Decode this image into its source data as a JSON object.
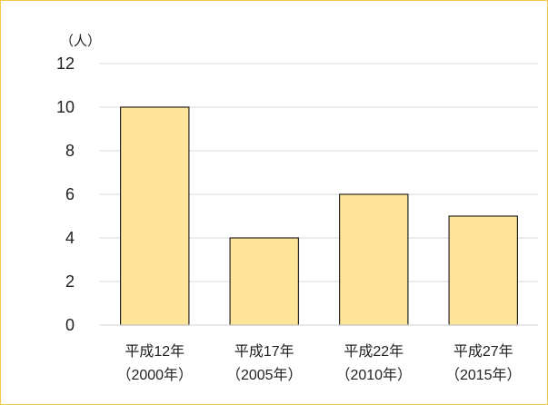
{
  "chart_data": {
    "type": "bar",
    "title": "",
    "unit_label": "（人）",
    "xlabel": "",
    "ylabel": "",
    "ylim": [
      0,
      12
    ],
    "yticks": [
      0,
      2,
      4,
      6,
      8,
      10,
      12
    ],
    "grid": true,
    "categories": [
      [
        "平成12年",
        "（2000年）"
      ],
      [
        "平成17年",
        "（2005年）"
      ],
      [
        "平成22年",
        "（2010年）"
      ],
      [
        "平成27年",
        "（2015年）"
      ]
    ],
    "values": [
      10,
      4,
      6,
      5
    ],
    "colors": {
      "bar": "#ffe599",
      "bar_stroke": "#262626",
      "grid": "#d9d9d9",
      "frame": "#f2c94c"
    }
  }
}
